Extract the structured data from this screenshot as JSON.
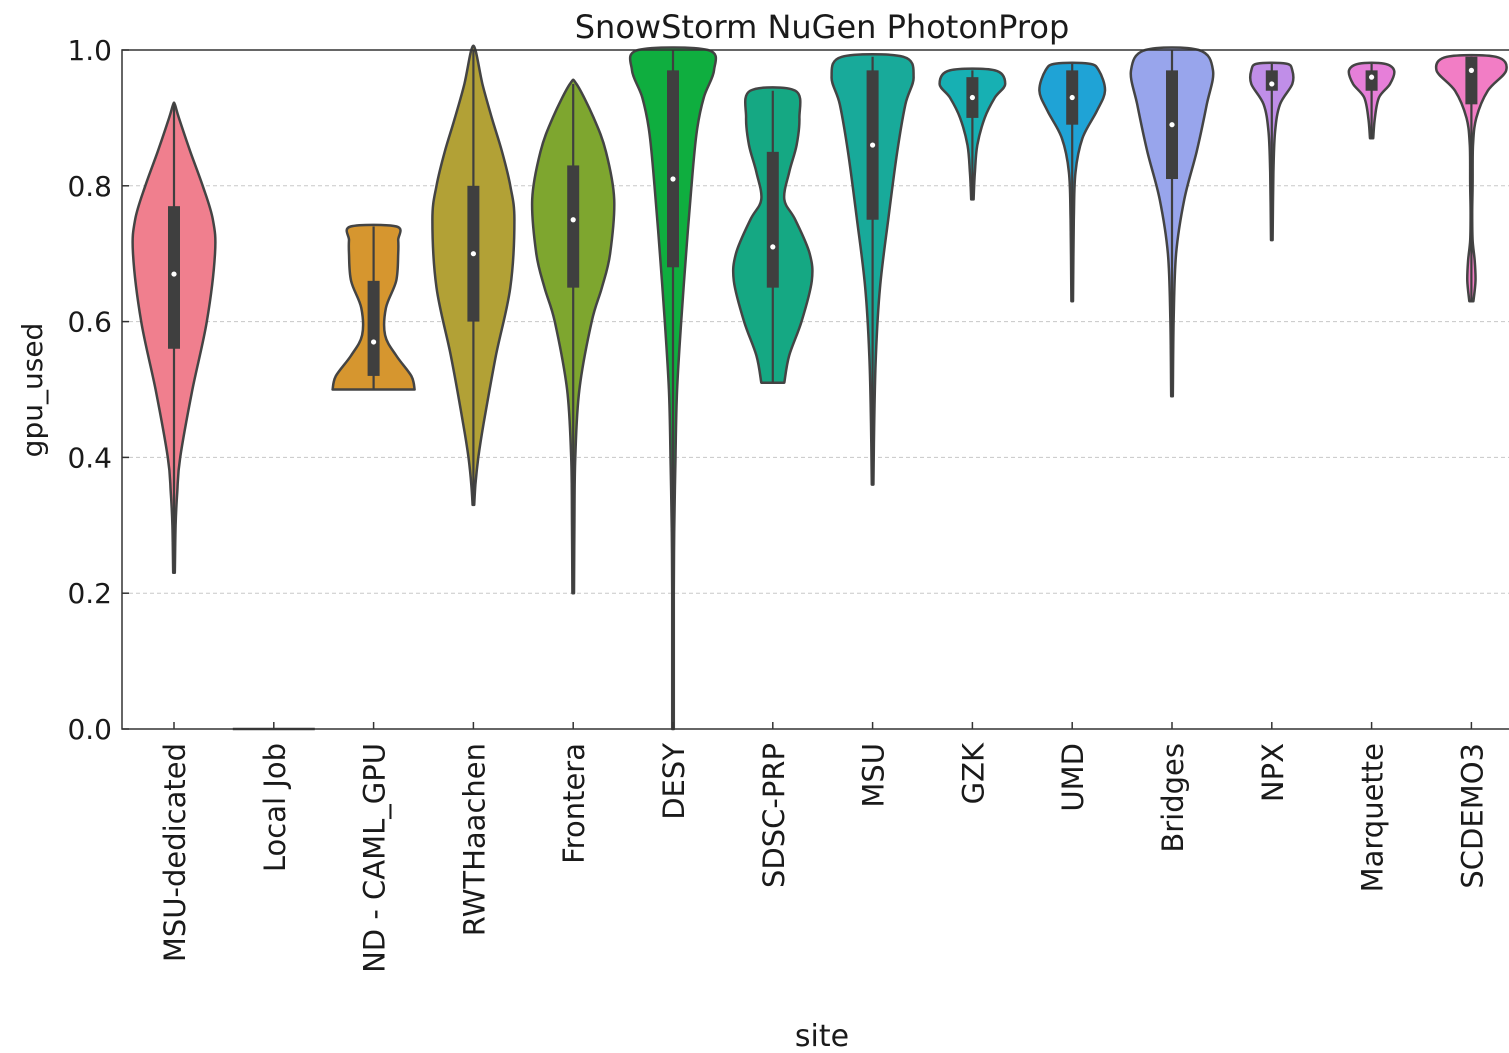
{
  "chart_data": {
    "type": "violin",
    "title": "SnowStorm NuGen PhotonProp",
    "xlabel": "site",
    "ylabel": "gpu_used",
    "ylim": [
      0,
      1
    ],
    "yticks": [
      "0.0",
      "0.2",
      "0.4",
      "0.6",
      "0.8",
      "1.0"
    ],
    "grid": "horizontal dashed",
    "series": [
      {
        "category": "MSU-dedicated",
        "color": "#f07f8e",
        "min": 0.23,
        "max": 0.92,
        "q1": 0.56,
        "median": 0.67,
        "q3": 0.77,
        "profile": [
          [
            0.23,
            0.02
          ],
          [
            0.3,
            0.04
          ],
          [
            0.35,
            0.08
          ],
          [
            0.4,
            0.15
          ],
          [
            0.5,
            0.45
          ],
          [
            0.6,
            0.8
          ],
          [
            0.7,
            1.0
          ],
          [
            0.75,
            0.95
          ],
          [
            0.8,
            0.7
          ],
          [
            0.85,
            0.4
          ],
          [
            0.9,
            0.12
          ],
          [
            0.92,
            0.02
          ]
        ]
      },
      {
        "category": "Local Job",
        "color": "#e28b3a",
        "min": 0,
        "max": 0,
        "q1": 0,
        "median": 0,
        "q3": 0,
        "profile": []
      },
      {
        "category": "ND - CAML_GPU",
        "color": "#d6962f",
        "min": 0.5,
        "max": 0.74,
        "q1": 0.52,
        "median": 0.57,
        "q3": 0.66,
        "profile": [
          [
            0.5,
            1.0
          ],
          [
            0.52,
            0.92
          ],
          [
            0.55,
            0.55
          ],
          [
            0.58,
            0.28
          ],
          [
            0.62,
            0.3
          ],
          [
            0.66,
            0.55
          ],
          [
            0.7,
            0.6
          ],
          [
            0.72,
            0.6
          ],
          [
            0.74,
            0.56
          ]
        ]
      },
      {
        "category": "RWTHaachen",
        "color": "#b2a136",
        "min": 0.33,
        "max": 1.0,
        "q1": 0.6,
        "median": 0.7,
        "q3": 0.8,
        "profile": [
          [
            0.33,
            0.02
          ],
          [
            0.36,
            0.05
          ],
          [
            0.4,
            0.12
          ],
          [
            0.45,
            0.25
          ],
          [
            0.55,
            0.55
          ],
          [
            0.65,
            0.9
          ],
          [
            0.75,
            1.0
          ],
          [
            0.8,
            0.9
          ],
          [
            0.85,
            0.7
          ],
          [
            0.9,
            0.45
          ],
          [
            0.95,
            0.22
          ],
          [
            1.0,
            0.05
          ]
        ]
      },
      {
        "category": "Frontera",
        "color": "#7ea62f",
        "min": 0.2,
        "max": 0.95,
        "q1": 0.65,
        "median": 0.75,
        "q3": 0.83,
        "profile": [
          [
            0.2,
            0.02
          ],
          [
            0.3,
            0.03
          ],
          [
            0.4,
            0.05
          ],
          [
            0.5,
            0.15
          ],
          [
            0.6,
            0.45
          ],
          [
            0.65,
            0.7
          ],
          [
            0.7,
            0.9
          ],
          [
            0.78,
            1.0
          ],
          [
            0.85,
            0.8
          ],
          [
            0.9,
            0.5
          ],
          [
            0.95,
            0.08
          ]
        ]
      },
      {
        "category": "DESY",
        "color": "#0fae3f",
        "min": 0.0,
        "max": 1.0,
        "q1": 0.68,
        "median": 0.81,
        "q3": 0.97,
        "profile": [
          [
            0.0,
            0.02
          ],
          [
            0.2,
            0.02
          ],
          [
            0.29,
            0.03
          ],
          [
            0.4,
            0.06
          ],
          [
            0.5,
            0.1
          ],
          [
            0.6,
            0.2
          ],
          [
            0.7,
            0.32
          ],
          [
            0.8,
            0.45
          ],
          [
            0.88,
            0.58
          ],
          [
            0.93,
            0.75
          ],
          [
            0.97,
            1.0
          ],
          [
            1.0,
            0.85
          ]
        ]
      },
      {
        "category": "SDSC-PRP",
        "color": "#15a883",
        "min": 0.51,
        "max": 0.94,
        "q1": 0.65,
        "median": 0.71,
        "q3": 0.85,
        "profile": [
          [
            0.51,
            0.28
          ],
          [
            0.55,
            0.4
          ],
          [
            0.6,
            0.7
          ],
          [
            0.66,
            0.95
          ],
          [
            0.7,
            0.9
          ],
          [
            0.75,
            0.55
          ],
          [
            0.78,
            0.28
          ],
          [
            0.82,
            0.4
          ],
          [
            0.86,
            0.58
          ],
          [
            0.9,
            0.65
          ],
          [
            0.94,
            0.55
          ]
        ]
      },
      {
        "category": "MSU",
        "color": "#18aa9a",
        "min": 0.36,
        "max": 0.99,
        "q1": 0.75,
        "median": 0.86,
        "q3": 0.97,
        "profile": [
          [
            0.36,
            0.02
          ],
          [
            0.45,
            0.04
          ],
          [
            0.55,
            0.08
          ],
          [
            0.65,
            0.18
          ],
          [
            0.75,
            0.38
          ],
          [
            0.85,
            0.6
          ],
          [
            0.92,
            0.8
          ],
          [
            0.96,
            1.0
          ],
          [
            0.99,
            0.75
          ]
        ]
      },
      {
        "category": "GZK",
        "color": "#17b0b3",
        "min": 0.78,
        "max": 0.97,
        "q1": 0.9,
        "median": 0.93,
        "q3": 0.96,
        "profile": [
          [
            0.78,
            0.03
          ],
          [
            0.82,
            0.06
          ],
          [
            0.86,
            0.12
          ],
          [
            0.9,
            0.3
          ],
          [
            0.93,
            0.55
          ],
          [
            0.95,
            0.8
          ],
          [
            0.97,
            0.55
          ]
        ]
      },
      {
        "category": "UMD",
        "color": "#1fa3d6",
        "min": 0.63,
        "max": 0.98,
        "q1": 0.89,
        "median": 0.93,
        "q3": 0.97,
        "profile": [
          [
            0.63,
            0.02
          ],
          [
            0.75,
            0.04
          ],
          [
            0.82,
            0.08
          ],
          [
            0.87,
            0.25
          ],
          [
            0.91,
            0.6
          ],
          [
            0.94,
            0.8
          ],
          [
            0.97,
            0.65
          ],
          [
            0.98,
            0.4
          ]
        ]
      },
      {
        "category": "Bridges",
        "color": "#98a5ec",
        "min": 0.49,
        "max": 1.0,
        "q1": 0.81,
        "median": 0.89,
        "q3": 0.97,
        "profile": [
          [
            0.49,
            0.02
          ],
          [
            0.6,
            0.04
          ],
          [
            0.7,
            0.1
          ],
          [
            0.78,
            0.3
          ],
          [
            0.85,
            0.6
          ],
          [
            0.92,
            0.85
          ],
          [
            0.97,
            1.0
          ],
          [
            1.0,
            0.65
          ]
        ]
      },
      {
        "category": "NPX",
        "color": "#c08ee8",
        "min": 0.72,
        "max": 0.98,
        "q1": 0.94,
        "median": 0.95,
        "q3": 0.97,
        "profile": [
          [
            0.72,
            0.02
          ],
          [
            0.82,
            0.04
          ],
          [
            0.88,
            0.08
          ],
          [
            0.92,
            0.2
          ],
          [
            0.95,
            0.5
          ],
          [
            0.97,
            0.5
          ],
          [
            0.98,
            0.35
          ]
        ]
      },
      {
        "category": "Marquette",
        "color": "#e67fd9",
        "min": 0.87,
        "max": 0.98,
        "q1": 0.94,
        "median": 0.96,
        "q3": 0.97,
        "profile": [
          [
            0.87,
            0.04
          ],
          [
            0.9,
            0.08
          ],
          [
            0.93,
            0.18
          ],
          [
            0.95,
            0.45
          ],
          [
            0.97,
            0.55
          ],
          [
            0.98,
            0.3
          ]
        ]
      },
      {
        "category": "SCDEMO3",
        "color": "#f27dc5",
        "min": 0.63,
        "max": 0.99,
        "q1": 0.92,
        "median": 0.97,
        "q3": 0.99,
        "profile": [
          [
            0.63,
            0.05
          ],
          [
            0.66,
            0.1
          ],
          [
            0.69,
            0.08
          ],
          [
            0.72,
            0.03
          ],
          [
            0.76,
            0.02
          ],
          [
            0.8,
            0.03
          ],
          [
            0.86,
            0.04
          ],
          [
            0.9,
            0.12
          ],
          [
            0.94,
            0.4
          ],
          [
            0.97,
            0.85
          ],
          [
            0.99,
            0.6
          ]
        ]
      }
    ]
  }
}
